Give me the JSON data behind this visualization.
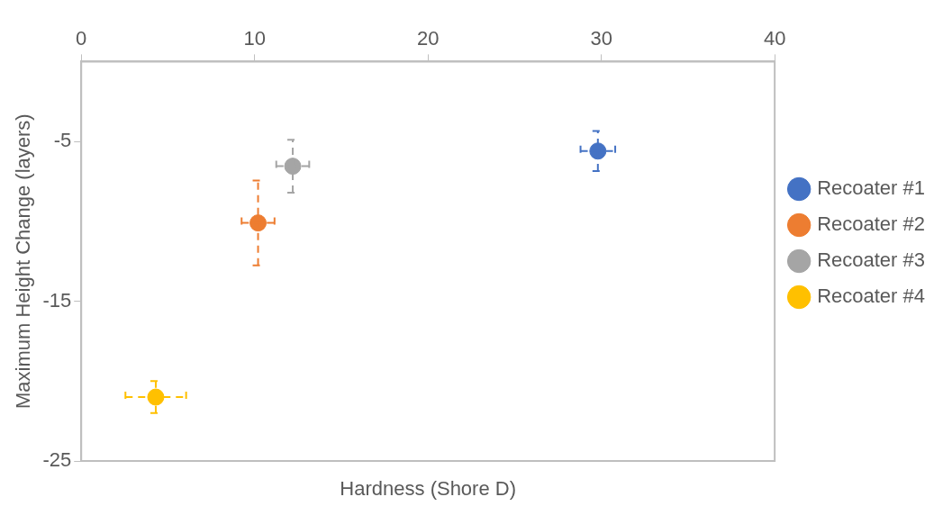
{
  "chart_data": {
    "type": "scatter",
    "xlabel": "Hardness (Shore D)",
    "ylabel": "Maximum Height Change (layers)",
    "xlim": [
      0,
      40
    ],
    "xticks": [
      0,
      10,
      20,
      30,
      40
    ],
    "ylim": [
      -25,
      0
    ],
    "yticks": [
      -25,
      -15,
      -5
    ],
    "grid": false,
    "legend": "right",
    "marker": "circle",
    "series": [
      {
        "name": "Recoater #1",
        "color": "#4472c4",
        "x": [
          29.8
        ],
        "values": [
          -5.6
        ],
        "errors": [
          1.25
        ],
        "xerrors": [
          1.0
        ]
      },
      {
        "name": "Recoater #2",
        "color": "#ed7d31",
        "x": [
          10.2
        ],
        "values": [
          -10.1
        ],
        "errors": [
          2.65
        ],
        "xerrors": [
          0.95
        ]
      },
      {
        "name": "Recoater #3",
        "color": "#a5a5a5",
        "x": [
          12.2
        ],
        "values": [
          -6.55
        ],
        "errors": [
          1.65
        ],
        "xerrors": [
          0.95
        ]
      },
      {
        "name": "Recoater #4",
        "color": "#ffc000",
        "x": [
          4.3
        ],
        "values": [
          -21.0
        ],
        "errors": [
          1.0
        ],
        "xerrors": [
          1.75
        ]
      }
    ]
  }
}
